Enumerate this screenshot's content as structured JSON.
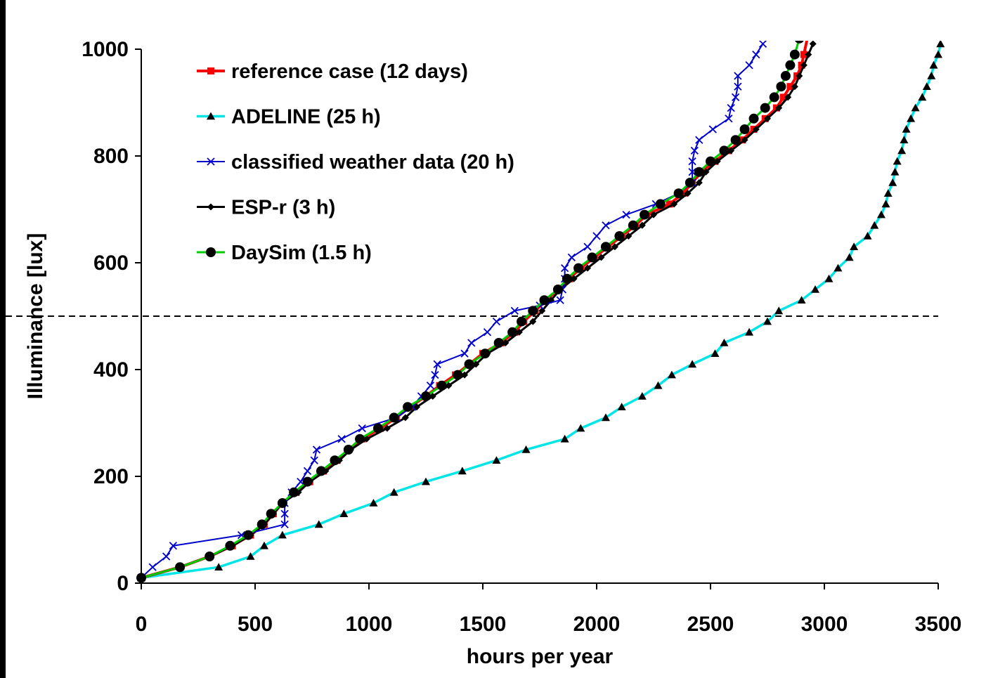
{
  "chart_data": {
    "type": "line",
    "xlabel": "hours per year",
    "ylabel": "Illuminance [lux]",
    "xlim": [
      0,
      3500
    ],
    "ylim": [
      0,
      1000
    ],
    "x_ticks": [
      0,
      500,
      1000,
      1500,
      2000,
      2500,
      3000,
      3500
    ],
    "y_ticks": [
      0,
      200,
      400,
      600,
      800,
      1000
    ],
    "grid": false,
    "legend_position": "top-left",
    "threshold_line": {
      "y": 500,
      "style": "dashed",
      "color": "#000000"
    },
    "series": [
      {
        "name": "reference case (12 days)",
        "color": "#ff0000",
        "marker": "square",
        "points": [
          [
            0,
            10
          ],
          [
            170,
            30
          ],
          [
            300,
            50
          ],
          [
            400,
            70
          ],
          [
            480,
            90
          ],
          [
            540,
            110
          ],
          [
            580,
            130
          ],
          [
            620,
            150
          ],
          [
            680,
            170
          ],
          [
            740,
            190
          ],
          [
            800,
            210
          ],
          [
            860,
            230
          ],
          [
            910,
            250
          ],
          [
            970,
            270
          ],
          [
            1050,
            290
          ],
          [
            1120,
            310
          ],
          [
            1180,
            330
          ],
          [
            1250,
            350
          ],
          [
            1310,
            370
          ],
          [
            1380,
            390
          ],
          [
            1440,
            410
          ],
          [
            1500,
            430
          ],
          [
            1580,
            450
          ],
          [
            1640,
            470
          ],
          [
            1680,
            490
          ],
          [
            1730,
            510
          ],
          [
            1780,
            530
          ],
          [
            1830,
            550
          ],
          [
            1880,
            570
          ],
          [
            1930,
            590
          ],
          [
            1990,
            610
          ],
          [
            2050,
            630
          ],
          [
            2110,
            650
          ],
          [
            2170,
            670
          ],
          [
            2220,
            690
          ],
          [
            2320,
            710
          ],
          [
            2380,
            730
          ],
          [
            2420,
            750
          ],
          [
            2460,
            770
          ],
          [
            2520,
            790
          ],
          [
            2580,
            810
          ],
          [
            2640,
            830
          ],
          [
            2690,
            850
          ],
          [
            2740,
            870
          ],
          [
            2790,
            890
          ],
          [
            2820,
            910
          ],
          [
            2850,
            930
          ],
          [
            2880,
            950
          ],
          [
            2900,
            970
          ],
          [
            2910,
            990
          ],
          [
            2930,
            1030
          ]
        ]
      },
      {
        "name": "ADELINE (25 h)",
        "color": "#00e5e5",
        "marker": "triangle",
        "points": [
          [
            0,
            10
          ],
          [
            340,
            30
          ],
          [
            480,
            50
          ],
          [
            540,
            70
          ],
          [
            620,
            90
          ],
          [
            780,
            110
          ],
          [
            890,
            130
          ],
          [
            1020,
            150
          ],
          [
            1110,
            170
          ],
          [
            1250,
            190
          ],
          [
            1410,
            210
          ],
          [
            1560,
            230
          ],
          [
            1690,
            250
          ],
          [
            1860,
            270
          ],
          [
            1930,
            290
          ],
          [
            2040,
            310
          ],
          [
            2110,
            330
          ],
          [
            2200,
            350
          ],
          [
            2270,
            370
          ],
          [
            2330,
            390
          ],
          [
            2420,
            410
          ],
          [
            2520,
            430
          ],
          [
            2560,
            450
          ],
          [
            2670,
            470
          ],
          [
            2750,
            490
          ],
          [
            2800,
            510
          ],
          [
            2900,
            530
          ],
          [
            2960,
            550
          ],
          [
            3020,
            570
          ],
          [
            3060,
            590
          ],
          [
            3110,
            610
          ],
          [
            3130,
            630
          ],
          [
            3190,
            650
          ],
          [
            3220,
            670
          ],
          [
            3250,
            690
          ],
          [
            3270,
            710
          ],
          [
            3280,
            730
          ],
          [
            3300,
            750
          ],
          [
            3310,
            770
          ],
          [
            3320,
            790
          ],
          [
            3340,
            810
          ],
          [
            3350,
            830
          ],
          [
            3360,
            850
          ],
          [
            3380,
            870
          ],
          [
            3400,
            890
          ],
          [
            3430,
            910
          ],
          [
            3450,
            930
          ],
          [
            3470,
            950
          ],
          [
            3480,
            970
          ],
          [
            3500,
            990
          ],
          [
            3510,
            1010
          ]
        ]
      },
      {
        "name": "classified weather data (20 h)",
        "color": "#0000cc",
        "marker": "x",
        "points": [
          [
            0,
            10
          ],
          [
            50,
            30
          ],
          [
            110,
            50
          ],
          [
            140,
            70
          ],
          [
            440,
            90
          ],
          [
            630,
            110
          ],
          [
            630,
            130
          ],
          [
            630,
            150
          ],
          [
            660,
            170
          ],
          [
            700,
            190
          ],
          [
            730,
            210
          ],
          [
            760,
            230
          ],
          [
            770,
            250
          ],
          [
            880,
            270
          ],
          [
            970,
            290
          ],
          [
            1120,
            310
          ],
          [
            1190,
            330
          ],
          [
            1230,
            350
          ],
          [
            1270,
            370
          ],
          [
            1290,
            390
          ],
          [
            1300,
            410
          ],
          [
            1420,
            430
          ],
          [
            1450,
            450
          ],
          [
            1520,
            470
          ],
          [
            1560,
            490
          ],
          [
            1640,
            510
          ],
          [
            1750,
            520
          ],
          [
            1840,
            530
          ],
          [
            1850,
            550
          ],
          [
            1860,
            570
          ],
          [
            1860,
            590
          ],
          [
            1890,
            610
          ],
          [
            1960,
            630
          ],
          [
            2000,
            650
          ],
          [
            2040,
            670
          ],
          [
            2130,
            690
          ],
          [
            2260,
            710
          ],
          [
            2360,
            730
          ],
          [
            2420,
            750
          ],
          [
            2420,
            770
          ],
          [
            2420,
            790
          ],
          [
            2430,
            810
          ],
          [
            2450,
            830
          ],
          [
            2510,
            850
          ],
          [
            2580,
            870
          ],
          [
            2590,
            890
          ],
          [
            2610,
            910
          ],
          [
            2620,
            930
          ],
          [
            2620,
            950
          ],
          [
            2670,
            970
          ],
          [
            2700,
            990
          ],
          [
            2730,
            1010
          ]
        ]
      },
      {
        "name": "ESP-r (3 h)",
        "color": "#000000",
        "marker": "diamond",
        "points": [
          [
            0,
            10
          ],
          [
            170,
            30
          ],
          [
            300,
            50
          ],
          [
            400,
            70
          ],
          [
            480,
            90
          ],
          [
            540,
            110
          ],
          [
            580,
            130
          ],
          [
            620,
            150
          ],
          [
            690,
            170
          ],
          [
            740,
            190
          ],
          [
            810,
            210
          ],
          [
            870,
            230
          ],
          [
            920,
            250
          ],
          [
            990,
            270
          ],
          [
            1080,
            290
          ],
          [
            1160,
            310
          ],
          [
            1210,
            330
          ],
          [
            1280,
            350
          ],
          [
            1350,
            370
          ],
          [
            1420,
            390
          ],
          [
            1470,
            410
          ],
          [
            1520,
            430
          ],
          [
            1600,
            450
          ],
          [
            1660,
            470
          ],
          [
            1720,
            490
          ],
          [
            1760,
            510
          ],
          [
            1800,
            530
          ],
          [
            1840,
            550
          ],
          [
            1900,
            570
          ],
          [
            1960,
            590
          ],
          [
            2020,
            610
          ],
          [
            2080,
            630
          ],
          [
            2140,
            650
          ],
          [
            2200,
            670
          ],
          [
            2250,
            690
          ],
          [
            2340,
            710
          ],
          [
            2400,
            730
          ],
          [
            2450,
            750
          ],
          [
            2480,
            770
          ],
          [
            2530,
            790
          ],
          [
            2590,
            810
          ],
          [
            2650,
            830
          ],
          [
            2700,
            850
          ],
          [
            2750,
            870
          ],
          [
            2800,
            890
          ],
          [
            2840,
            910
          ],
          [
            2870,
            930
          ],
          [
            2890,
            950
          ],
          [
            2910,
            970
          ],
          [
            2930,
            990
          ],
          [
            2950,
            1010
          ]
        ]
      },
      {
        "name": "DaySim (1.5 h)",
        "color": "#00cc00",
        "marker": "circle",
        "points": [
          [
            0,
            10
          ],
          [
            170,
            30
          ],
          [
            300,
            50
          ],
          [
            390,
            70
          ],
          [
            470,
            90
          ],
          [
            530,
            110
          ],
          [
            570,
            130
          ],
          [
            620,
            150
          ],
          [
            670,
            170
          ],
          [
            730,
            190
          ],
          [
            790,
            210
          ],
          [
            850,
            230
          ],
          [
            910,
            250
          ],
          [
            960,
            270
          ],
          [
            1040,
            290
          ],
          [
            1110,
            310
          ],
          [
            1170,
            330
          ],
          [
            1250,
            350
          ],
          [
            1320,
            370
          ],
          [
            1390,
            390
          ],
          [
            1440,
            410
          ],
          [
            1510,
            430
          ],
          [
            1570,
            450
          ],
          [
            1630,
            470
          ],
          [
            1670,
            490
          ],
          [
            1720,
            510
          ],
          [
            1770,
            530
          ],
          [
            1830,
            550
          ],
          [
            1870,
            570
          ],
          [
            1920,
            590
          ],
          [
            1980,
            610
          ],
          [
            2040,
            630
          ],
          [
            2100,
            650
          ],
          [
            2160,
            670
          ],
          [
            2210,
            690
          ],
          [
            2280,
            710
          ],
          [
            2360,
            730
          ],
          [
            2410,
            750
          ],
          [
            2450,
            770
          ],
          [
            2500,
            790
          ],
          [
            2560,
            810
          ],
          [
            2610,
            830
          ],
          [
            2650,
            850
          ],
          [
            2690,
            870
          ],
          [
            2740,
            890
          ],
          [
            2780,
            910
          ],
          [
            2810,
            930
          ],
          [
            2830,
            950
          ],
          [
            2850,
            970
          ],
          [
            2870,
            990
          ],
          [
            2890,
            1020
          ]
        ]
      }
    ]
  }
}
